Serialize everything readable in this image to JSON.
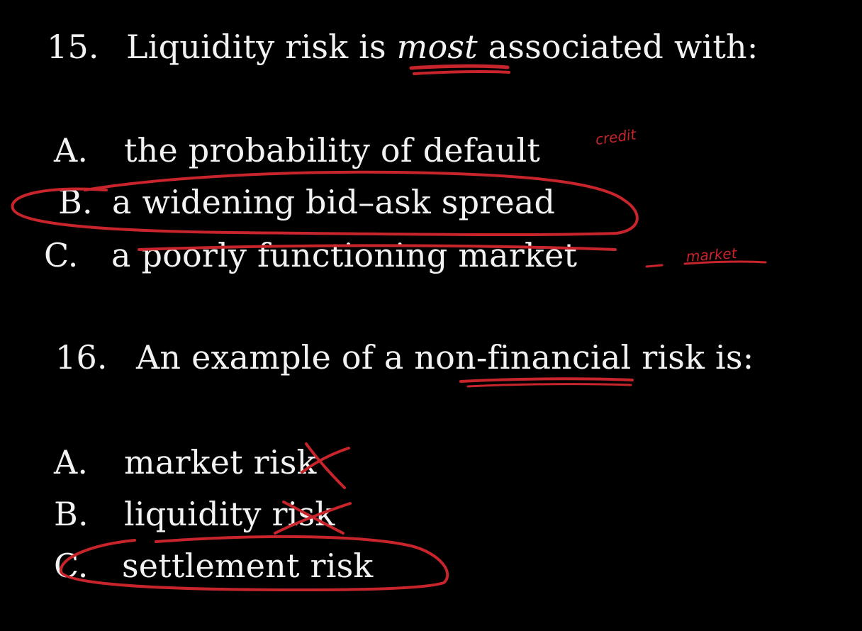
{
  "colors": {
    "background": "#000000",
    "text": "#f2f2f2",
    "ink": "#c8242b"
  },
  "question15": {
    "number": "15.",
    "text_before": "Liquidity risk is ",
    "text_emphasis": "most",
    "text_after": " associated with:",
    "options": [
      {
        "letter": "A.",
        "text": "the probability of default"
      },
      {
        "letter": "B.",
        "text": "a widening bid–ask spread"
      },
      {
        "letter": "C.",
        "text": "a poorly functioning market"
      }
    ]
  },
  "question16": {
    "number": "16.",
    "text": "An example of a non-financial risk is:",
    "options": [
      {
        "letter": "A.",
        "text": "market risk"
      },
      {
        "letter": "B.",
        "text": "liquidity risk"
      },
      {
        "letter": "C.",
        "text": "settlement risk"
      }
    ]
  },
  "annotations": {
    "note_credit": "credit",
    "note_market": "market"
  }
}
